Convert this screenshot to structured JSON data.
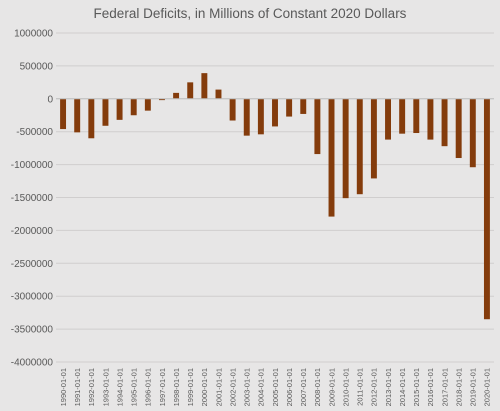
{
  "chart_data": {
    "type": "bar",
    "title": "Federal Deficits, in Millions of Constant 2020 Dollars",
    "xlabel": "",
    "ylabel": "",
    "ylim": [
      -4000000,
      1000000
    ],
    "yticks": [
      1000000,
      500000,
      0,
      -500000,
      -1000000,
      -1500000,
      -2000000,
      -2500000,
      -3000000,
      -3500000,
      -4000000
    ],
    "ytick_labels": [
      "1000000",
      "500000",
      "0",
      "-500000",
      "-1000000",
      "-1500000",
      "-2000000",
      "-2500000",
      "-3000000",
      "-3500000",
      "-4000000"
    ],
    "grid": true,
    "legend": "none",
    "bar_color": "#843c0c",
    "categories": [
      "1990-01-01",
      "1991-01-01",
      "1992-01-01",
      "1993-01-01",
      "1994-01-01",
      "1995-01-01",
      "1996-01-01",
      "1997-01-01",
      "1998-01-01",
      "1999-01-01",
      "2000-01-01",
      "2001-01-01",
      "2002-01-01",
      "2003-01-01",
      "2004-01-01",
      "2005-01-01",
      "2006-01-01",
      "2007-01-01",
      "2008-01-01",
      "2009-01-01",
      "2010-01-01",
      "2011-01-01",
      "2012-01-01",
      "2013-01-01",
      "2014-01-01",
      "2015-01-01",
      "2016-01-01",
      "2017-01-01",
      "2018-01-01",
      "2019-01-01",
      "2020-01-01"
    ],
    "values": [
      -460000,
      -510000,
      -600000,
      -410000,
      -320000,
      -250000,
      -180000,
      -20000,
      90000,
      250000,
      390000,
      140000,
      -330000,
      -560000,
      -540000,
      -420000,
      -270000,
      -230000,
      -840000,
      -1790000,
      -1510000,
      -1450000,
      -1210000,
      -620000,
      -530000,
      -520000,
      -620000,
      -720000,
      -900000,
      -1040000,
      -3350000
    ]
  }
}
